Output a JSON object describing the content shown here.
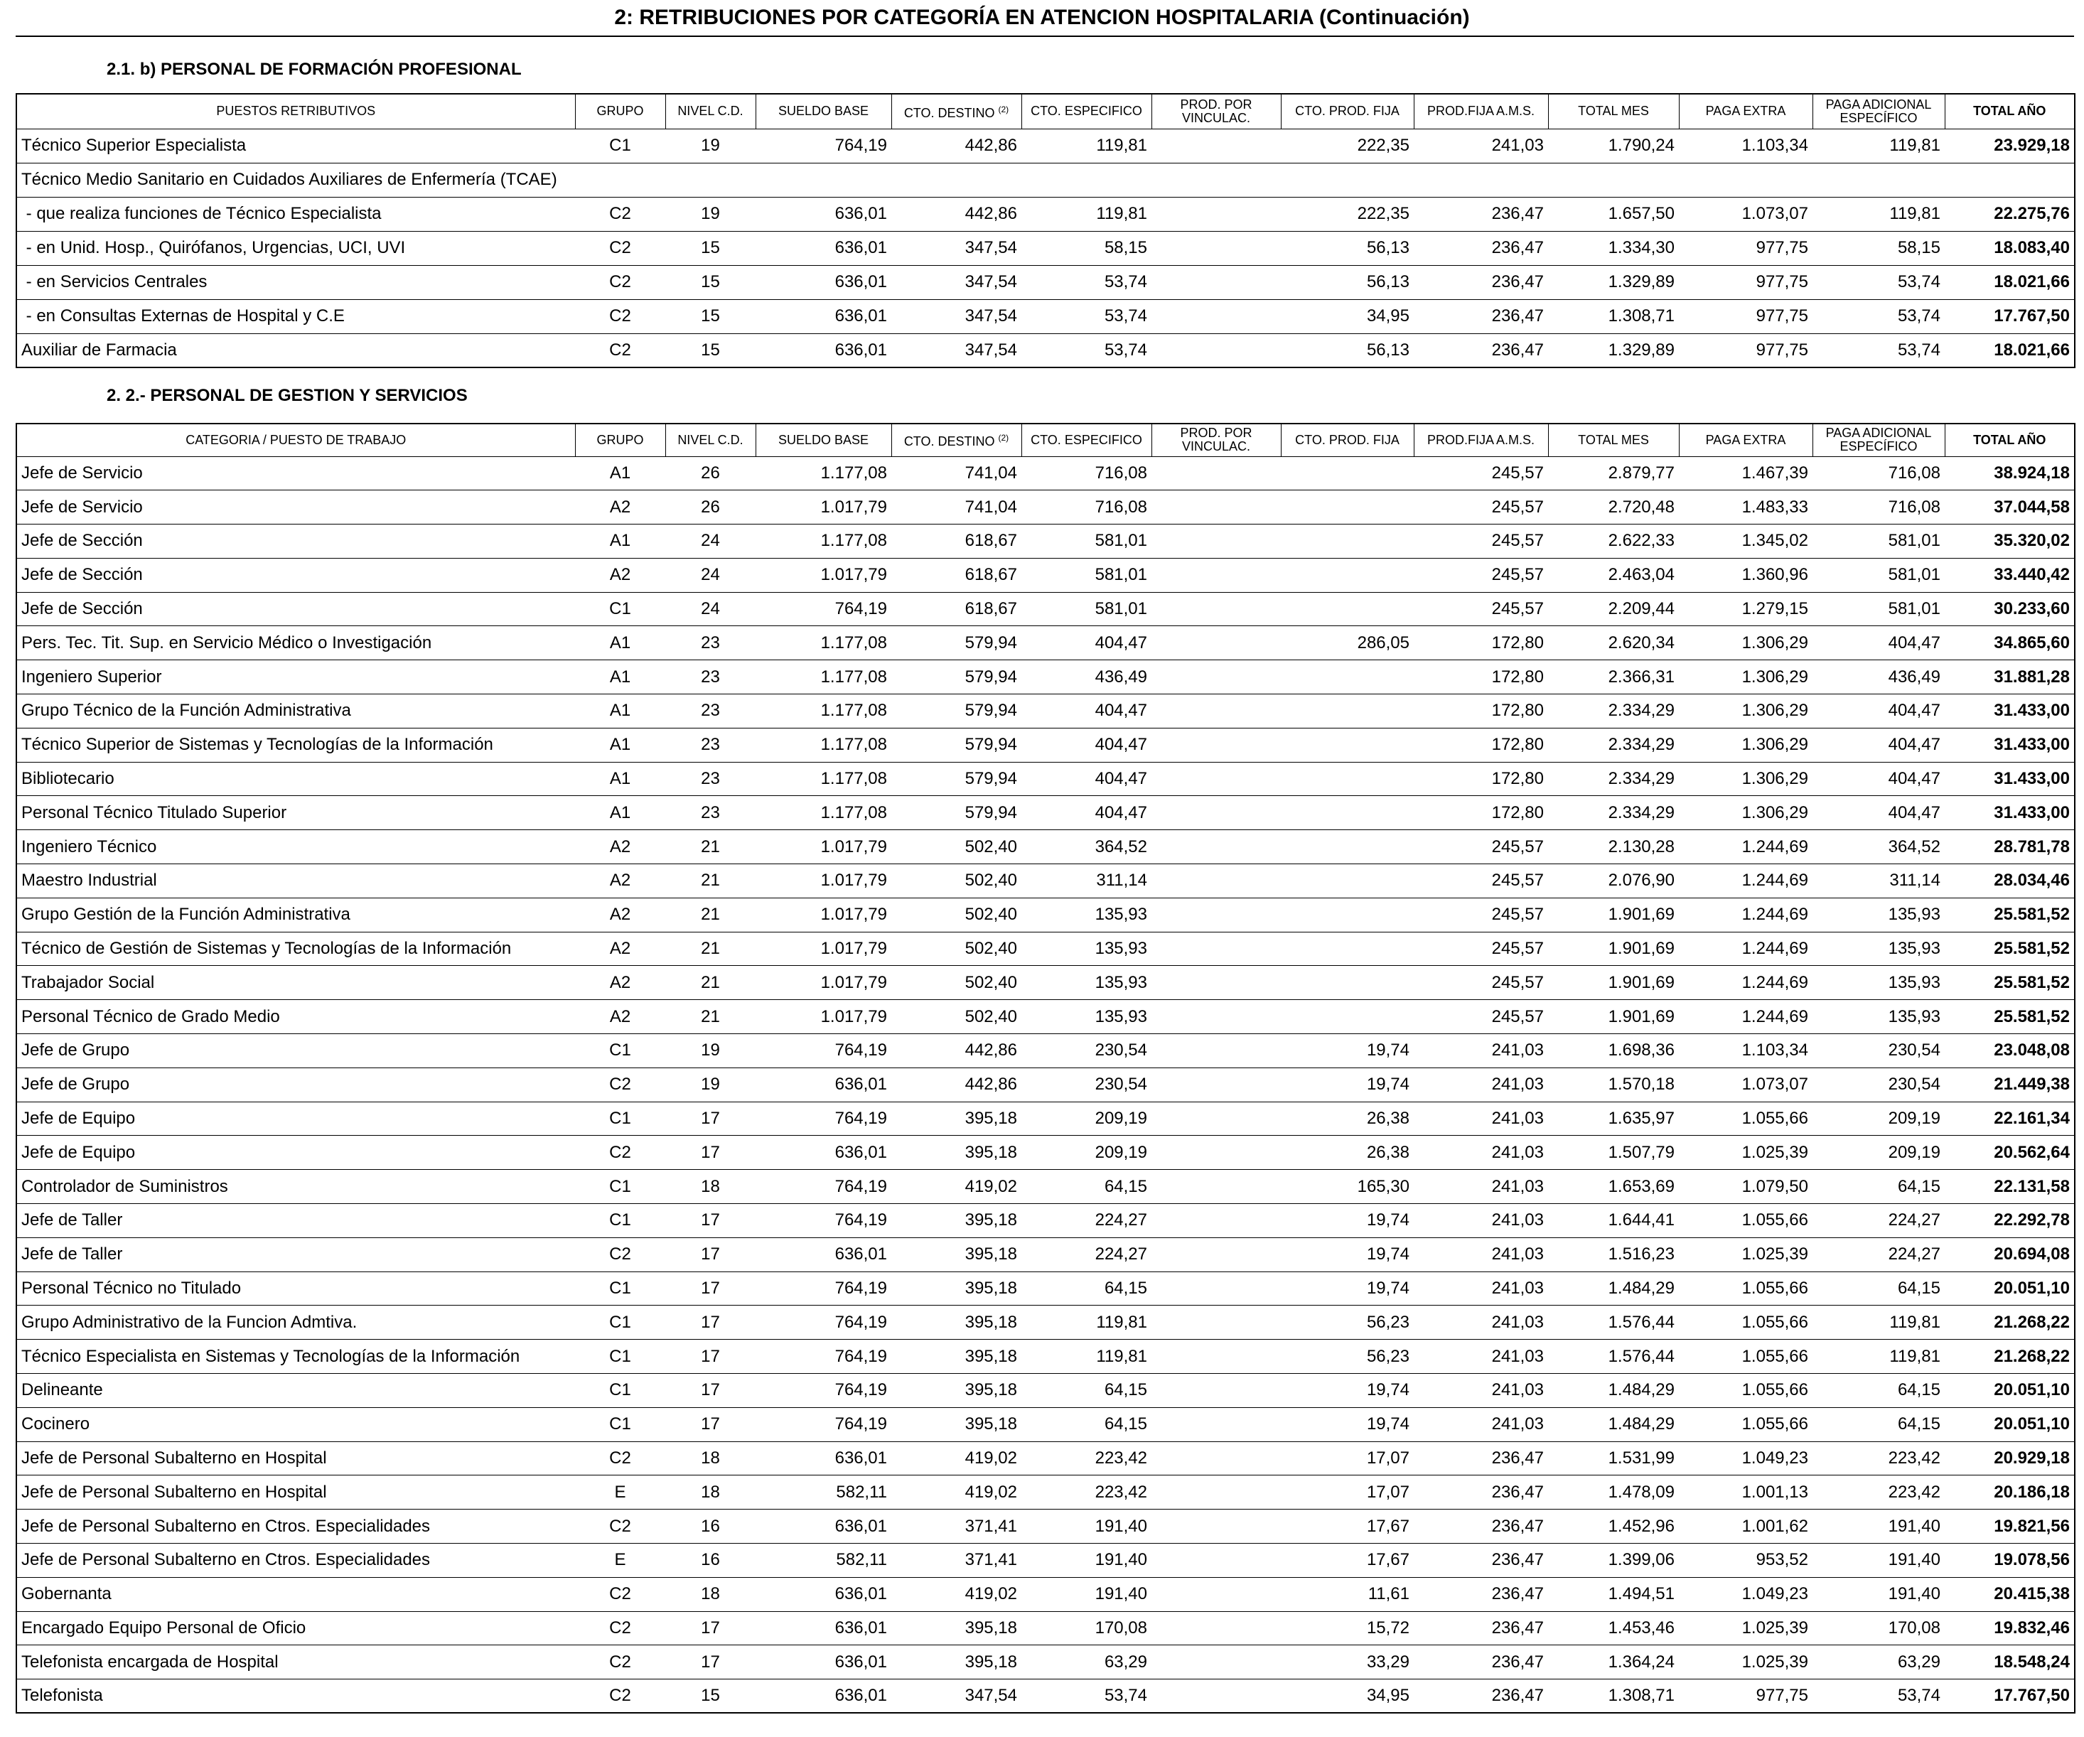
{
  "header": {
    "title": "2: RETRIBUCIONES POR CATEGORÍA EN ATENCION HOSPITALARIA (Continuación)"
  },
  "sections": [
    {
      "title": "2.1. b) PERSONAL DE FORMACIÓN PROFESIONAL",
      "columns": [
        "PUESTOS RETRIBUTIVOS",
        "GRUPO",
        "NIVEL C.D.",
        "SUELDO BASE",
        {
          "text": "CTO. DESTINO",
          "sup": "(2)"
        },
        "CTO. ESPECIFICO",
        "PROD. POR VINCULAC.",
        "CTO. PROD. FIJA",
        "PROD.FIJA A.M.S.",
        "TOTAL MES",
        "PAGA  EXTRA",
        "PAGA ADICIONAL ESPECÍFICO",
        "TOTAL AÑO"
      ],
      "rows": [
        [
          "Técnico Superior Especialista",
          "C1",
          "19",
          "764,19",
          "442,86",
          "119,81",
          null,
          "222,35",
          "241,03",
          "1.790,24",
          "1.103,34",
          "119,81",
          "23.929,18"
        ],
        [
          "Técnico Medio Sanitario en Cuidados Auxiliares de Enfermería (TCAE)",
          null,
          null,
          null,
          null,
          null,
          null,
          null,
          null,
          null,
          null,
          null,
          null
        ],
        [
          " - que realiza funciones de Técnico Especialista",
          "C2",
          "19",
          "636,01",
          "442,86",
          "119,81",
          null,
          "222,35",
          "236,47",
          "1.657,50",
          "1.073,07",
          "119,81",
          "22.275,76"
        ],
        [
          " - en Unid. Hosp., Quirófanos, Urgencias, UCI, UVI",
          "C2",
          "15",
          "636,01",
          "347,54",
          "58,15",
          null,
          "56,13",
          "236,47",
          "1.334,30",
          "977,75",
          "58,15",
          "18.083,40"
        ],
        [
          " - en Servicios Centrales",
          "C2",
          "15",
          "636,01",
          "347,54",
          "53,74",
          null,
          "56,13",
          "236,47",
          "1.329,89",
          "977,75",
          "53,74",
          "18.021,66"
        ],
        [
          " - en Consultas Externas de Hospital y C.E",
          "C2",
          "15",
          "636,01",
          "347,54",
          "53,74",
          null,
          "34,95",
          "236,47",
          "1.308,71",
          "977,75",
          "53,74",
          "17.767,50"
        ],
        [
          "Auxiliar de Farmacia",
          "C2",
          "15",
          "636,01",
          "347,54",
          "53,74",
          null,
          "56,13",
          "236,47",
          "1.329,89",
          "977,75",
          "53,74",
          "18.021,66"
        ]
      ]
    },
    {
      "title": "2. 2.- PERSONAL DE GESTION Y SERVICIOS",
      "columns": [
        "CATEGORIA / PUESTO DE TRABAJO",
        "GRUPO",
        "NIVEL C.D.",
        "SUELDO BASE",
        {
          "text": "CTO. DESTINO",
          "sup": "(2)"
        },
        "CTO. ESPECIFICO",
        "PROD. POR VINCULAC.",
        "CTO. PROD. FIJA",
        "PROD.FIJA A.M.S.",
        "TOTAL MES",
        "PAGA  EXTRA",
        "PAGA ADICIONAL ESPECÍFICO",
        "TOTAL AÑO"
      ],
      "rows": [
        [
          "Jefe de Servicio",
          "A1",
          "26",
          "1.177,08",
          "741,04",
          "716,08",
          null,
          null,
          "245,57",
          "2.879,77",
          "1.467,39",
          "716,08",
          "38.924,18"
        ],
        [
          "Jefe de Servicio",
          "A2",
          "26",
          "1.017,79",
          "741,04",
          "716,08",
          null,
          null,
          "245,57",
          "2.720,48",
          "1.483,33",
          "716,08",
          "37.044,58"
        ],
        [
          "Jefe de Sección",
          "A1",
          "24",
          "1.177,08",
          "618,67",
          "581,01",
          null,
          null,
          "245,57",
          "2.622,33",
          "1.345,02",
          "581,01",
          "35.320,02"
        ],
        [
          "Jefe de Sección",
          "A2",
          "24",
          "1.017,79",
          "618,67",
          "581,01",
          null,
          null,
          "245,57",
          "2.463,04",
          "1.360,96",
          "581,01",
          "33.440,42"
        ],
        [
          "Jefe de Sección",
          "C1",
          "24",
          "764,19",
          "618,67",
          "581,01",
          null,
          null,
          "245,57",
          "2.209,44",
          "1.279,15",
          "581,01",
          "30.233,60"
        ],
        [
          "Pers. Tec. Tit. Sup. en Servicio Médico o Investigación",
          "A1",
          "23",
          "1.177,08",
          "579,94",
          "404,47",
          null,
          "286,05",
          "172,80",
          "2.620,34",
          "1.306,29",
          "404,47",
          "34.865,60"
        ],
        [
          "Ingeniero Superior",
          "A1",
          "23",
          "1.177,08",
          "579,94",
          "436,49",
          null,
          null,
          "172,80",
          "2.366,31",
          "1.306,29",
          "436,49",
          "31.881,28"
        ],
        [
          "Grupo Técnico de la Función Administrativa",
          "A1",
          "23",
          "1.177,08",
          "579,94",
          "404,47",
          null,
          null,
          "172,80",
          "2.334,29",
          "1.306,29",
          "404,47",
          "31.433,00"
        ],
        [
          "Técnico Superior de Sistemas y Tecnologías de la Información",
          "A1",
          "23",
          "1.177,08",
          "579,94",
          "404,47",
          null,
          null,
          "172,80",
          "2.334,29",
          "1.306,29",
          "404,47",
          "31.433,00"
        ],
        [
          "Bibliotecario",
          "A1",
          "23",
          "1.177,08",
          "579,94",
          "404,47",
          null,
          null,
          "172,80",
          "2.334,29",
          "1.306,29",
          "404,47",
          "31.433,00"
        ],
        [
          "Personal Técnico Titulado Superior",
          "A1",
          "23",
          "1.177,08",
          "579,94",
          "404,47",
          null,
          null,
          "172,80",
          "2.334,29",
          "1.306,29",
          "404,47",
          "31.433,00"
        ],
        [
          "Ingeniero Técnico",
          "A2",
          "21",
          "1.017,79",
          "502,40",
          "364,52",
          null,
          null,
          "245,57",
          "2.130,28",
          "1.244,69",
          "364,52",
          "28.781,78"
        ],
        [
          "Maestro Industrial",
          "A2",
          "21",
          "1.017,79",
          "502,40",
          "311,14",
          null,
          null,
          "245,57",
          "2.076,90",
          "1.244,69",
          "311,14",
          "28.034,46"
        ],
        [
          "Grupo Gestión de la Función Administrativa",
          "A2",
          "21",
          "1.017,79",
          "502,40",
          "135,93",
          null,
          null,
          "245,57",
          "1.901,69",
          "1.244,69",
          "135,93",
          "25.581,52"
        ],
        [
          "Técnico de Gestión de Sistemas y Tecnologías de la Información",
          "A2",
          "21",
          "1.017,79",
          "502,40",
          "135,93",
          null,
          null,
          "245,57",
          "1.901,69",
          "1.244,69",
          "135,93",
          "25.581,52"
        ],
        [
          "Trabajador Social",
          "A2",
          "21",
          "1.017,79",
          "502,40",
          "135,93",
          null,
          null,
          "245,57",
          "1.901,69",
          "1.244,69",
          "135,93",
          "25.581,52"
        ],
        [
          "Personal Técnico de Grado Medio",
          "A2",
          "21",
          "1.017,79",
          "502,40",
          "135,93",
          null,
          null,
          "245,57",
          "1.901,69",
          "1.244,69",
          "135,93",
          "25.581,52"
        ],
        [
          "Jefe de Grupo",
          "C1",
          "19",
          "764,19",
          "442,86",
          "230,54",
          null,
          "19,74",
          "241,03",
          "1.698,36",
          "1.103,34",
          "230,54",
          "23.048,08"
        ],
        [
          "Jefe de Grupo",
          "C2",
          "19",
          "636,01",
          "442,86",
          "230,54",
          null,
          "19,74",
          "241,03",
          "1.570,18",
          "1.073,07",
          "230,54",
          "21.449,38"
        ],
        [
          "Jefe de Equipo",
          "C1",
          "17",
          "764,19",
          "395,18",
          "209,19",
          null,
          "26,38",
          "241,03",
          "1.635,97",
          "1.055,66",
          "209,19",
          "22.161,34"
        ],
        [
          "Jefe de Equipo",
          "C2",
          "17",
          "636,01",
          "395,18",
          "209,19",
          null,
          "26,38",
          "241,03",
          "1.507,79",
          "1.025,39",
          "209,19",
          "20.562,64"
        ],
        [
          "Controlador de Suministros",
          "C1",
          "18",
          "764,19",
          "419,02",
          "64,15",
          null,
          "165,30",
          "241,03",
          "1.653,69",
          "1.079,50",
          "64,15",
          "22.131,58"
        ],
        [
          "Jefe de Taller",
          "C1",
          "17",
          "764,19",
          "395,18",
          "224,27",
          null,
          "19,74",
          "241,03",
          "1.644,41",
          "1.055,66",
          "224,27",
          "22.292,78"
        ],
        [
          "Jefe de Taller",
          "C2",
          "17",
          "636,01",
          "395,18",
          "224,27",
          null,
          "19,74",
          "241,03",
          "1.516,23",
          "1.025,39",
          "224,27",
          "20.694,08"
        ],
        [
          "Personal Técnico no Titulado",
          "C1",
          "17",
          "764,19",
          "395,18",
          "64,15",
          null,
          "19,74",
          "241,03",
          "1.484,29",
          "1.055,66",
          "64,15",
          "20.051,10"
        ],
        [
          "Grupo Administrativo de la Funcion Admtiva.",
          "C1",
          "17",
          "764,19",
          "395,18",
          "119,81",
          null,
          "56,23",
          "241,03",
          "1.576,44",
          "1.055,66",
          "119,81",
          "21.268,22"
        ],
        [
          "Técnico Especialista en Sistemas y Tecnologías de la Información",
          "C1",
          "17",
          "764,19",
          "395,18",
          "119,81",
          null,
          "56,23",
          "241,03",
          "1.576,44",
          "1.055,66",
          "119,81",
          "21.268,22"
        ],
        [
          "Delineante",
          "C1",
          "17",
          "764,19",
          "395,18",
          "64,15",
          null,
          "19,74",
          "241,03",
          "1.484,29",
          "1.055,66",
          "64,15",
          "20.051,10"
        ],
        [
          "Cocinero",
          "C1",
          "17",
          "764,19",
          "395,18",
          "64,15",
          null,
          "19,74",
          "241,03",
          "1.484,29",
          "1.055,66",
          "64,15",
          "20.051,10"
        ],
        [
          "Jefe de Personal Subalterno en Hospital",
          "C2",
          "18",
          "636,01",
          "419,02",
          "223,42",
          null,
          "17,07",
          "236,47",
          "1.531,99",
          "1.049,23",
          "223,42",
          "20.929,18"
        ],
        [
          "Jefe de Personal Subalterno en Hospital",
          "E",
          "18",
          "582,11",
          "419,02",
          "223,42",
          null,
          "17,07",
          "236,47",
          "1.478,09",
          "1.001,13",
          "223,42",
          "20.186,18"
        ],
        [
          "Jefe de Personal Subalterno en Ctros. Especialidades",
          "C2",
          "16",
          "636,01",
          "371,41",
          "191,40",
          null,
          "17,67",
          "236,47",
          "1.452,96",
          "1.001,62",
          "191,40",
          "19.821,56"
        ],
        [
          "Jefe de Personal Subalterno en Ctros. Especialidades",
          "E",
          "16",
          "582,11",
          "371,41",
          "191,40",
          null,
          "17,67",
          "236,47",
          "1.399,06",
          "953,52",
          "191,40",
          "19.078,56"
        ],
        [
          "Gobernanta",
          "C2",
          "18",
          "636,01",
          "419,02",
          "191,40",
          null,
          "11,61",
          "236,47",
          "1.494,51",
          "1.049,23",
          "191,40",
          "20.415,38"
        ],
        [
          "Encargado Equipo Personal de Oficio",
          "C2",
          "17",
          "636,01",
          "395,18",
          "170,08",
          null,
          "15,72",
          "236,47",
          "1.453,46",
          "1.025,39",
          "170,08",
          "19.832,46"
        ],
        [
          "Telefonista encargada de Hospital",
          "C2",
          "17",
          "636,01",
          "395,18",
          "63,29",
          null,
          "33,29",
          "236,47",
          "1.364,24",
          "1.025,39",
          "63,29",
          "18.548,24"
        ],
        [
          "Telefonista",
          "C2",
          "15",
          "636,01",
          "347,54",
          "53,74",
          null,
          "34,95",
          "236,47",
          "1.308,71",
          "977,75",
          "53,74",
          "17.767,50"
        ]
      ]
    }
  ]
}
